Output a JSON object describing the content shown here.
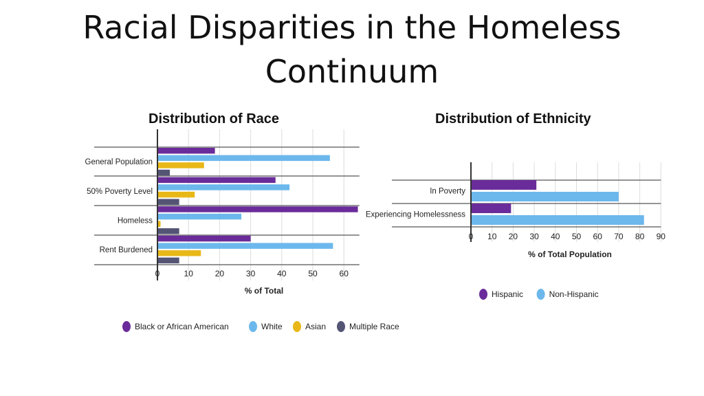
{
  "slide": {
    "title_line1": "Racial Disparities in the Homeless",
    "title_line2": "Continuum"
  },
  "chart_data": [
    {
      "type": "bar",
      "orientation": "horizontal",
      "title": "Distribution of Race",
      "xlabel": "% of Total",
      "ylabel": "",
      "xlim": [
        0,
        65
      ],
      "xticks": [
        0,
        10,
        20,
        30,
        40,
        50,
        60
      ],
      "grid": true,
      "legend": "bottom",
      "categories": [
        "General Population",
        "50% Poverty Level",
        "Homeless",
        "Rent Burdened"
      ],
      "series": [
        {
          "name": "Black or African American",
          "color": "#6a2c9a",
          "values": [
            18.5,
            38,
            64.5,
            30
          ]
        },
        {
          "name": "White",
          "color": "#6cb8ec",
          "values": [
            55.5,
            42.5,
            27,
            56.5
          ]
        },
        {
          "name": "Asian",
          "color": "#e8b818",
          "values": [
            15,
            12,
            1,
            14
          ]
        },
        {
          "name": "Multiple Race",
          "color": "#545475",
          "values": [
            4,
            7,
            7,
            7
          ]
        }
      ]
    },
    {
      "type": "bar",
      "orientation": "horizontal",
      "title": "Distribution of Ethnicity",
      "xlabel": "% of Total Population",
      "ylabel": "",
      "xlim": [
        0,
        90
      ],
      "xticks": [
        0,
        10,
        20,
        30,
        40,
        50,
        60,
        70,
        80,
        90
      ],
      "grid": true,
      "legend": "bottom",
      "categories": [
        "In Poverty",
        "Experiencing Homelessness"
      ],
      "series": [
        {
          "name": "Hispanic",
          "color": "#6a2c9a",
          "values": [
            31,
            19
          ]
        },
        {
          "name": "Non-Hispanic",
          "color": "#6cb8ec",
          "values": [
            70,
            82
          ]
        }
      ]
    }
  ]
}
